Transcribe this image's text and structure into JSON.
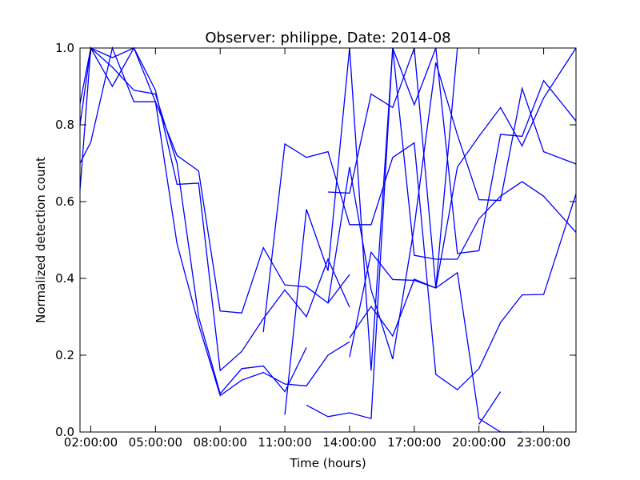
{
  "chart_data": {
    "type": "line",
    "title": "Observer: philippe, Date: 2014-08",
    "xlabel": "Time (hours)",
    "ylabel": "Normalized detection count",
    "xlim": [
      1.5,
      24.5
    ],
    "ylim": [
      0.0,
      1.0
    ],
    "x_ticks": [
      2,
      5,
      8,
      11,
      14,
      17,
      20,
      23
    ],
    "x_tick_labels": [
      "02:00:00",
      "05:00:00",
      "08:00:00",
      "11:00:00",
      "14:00:00",
      "17:00:00",
      "20:00:00",
      "23:00:00"
    ],
    "y_ticks": [
      0.0,
      0.2,
      0.4,
      0.6,
      0.8,
      1.0
    ],
    "y_tick_labels": [
      "0.0",
      "0.2",
      "0.4",
      "0.6",
      "0.8",
      "1.0"
    ],
    "grid": false,
    "line_color": "#0000ff",
    "series": [
      {
        "x": [
          1.5,
          2,
          3,
          4,
          5,
          6,
          7,
          8,
          9,
          10,
          11,
          12,
          13,
          14
        ],
        "y": [
          0.855,
          1.0,
          0.975,
          1.0,
          0.89,
          0.645,
          0.648,
          0.16,
          0.21,
          0.295,
          0.37,
          0.3,
          0.45,
          0.325
        ]
      },
      {
        "x": [
          1.5,
          2,
          3,
          4,
          5,
          6,
          7,
          8,
          9,
          10,
          11,
          12,
          13,
          14
        ],
        "y": [
          0.63,
          1.0,
          0.9,
          1.0,
          0.86,
          0.49,
          0.28,
          0.095,
          0.135,
          0.155,
          0.125,
          0.12,
          0.2,
          0.235
        ]
      },
      {
        "x": [
          1.5,
          2,
          3,
          4,
          5,
          6,
          7,
          8,
          9,
          10,
          11,
          12,
          13,
          14
        ],
        "y": [
          0.7,
          0.755,
          1.0,
          0.86,
          0.86,
          0.72,
          0.68,
          0.315,
          0.31,
          0.48,
          0.383,
          0.378,
          0.336,
          0.41
        ]
      },
      {
        "x": [
          1.5,
          2,
          3,
          4,
          5,
          6,
          7,
          8,
          9,
          10,
          11,
          12
        ],
        "y": [
          0.8,
          1.0,
          0.95,
          0.89,
          0.88,
          0.7,
          0.3,
          0.1,
          0.165,
          0.172,
          0.105,
          0.22
        ]
      },
      {
        "x": [
          10,
          11,
          12,
          13,
          14,
          15,
          16,
          17,
          18,
          19,
          20,
          21,
          22,
          23,
          24.5
        ],
        "y": [
          0.26,
          0.75,
          0.715,
          0.73,
          0.54,
          0.54,
          0.715,
          0.753,
          0.15,
          0.11,
          0.165,
          0.285,
          0.357,
          0.358,
          0.62
        ]
      },
      {
        "x": [
          11,
          12,
          13,
          14,
          15,
          16,
          17,
          18,
          19,
          20,
          21,
          22,
          23,
          24.5
        ],
        "y": [
          0.045,
          0.58,
          0.42,
          1.0,
          0.16,
          1.0,
          0.852,
          1.0,
          0.465,
          0.472,
          0.775,
          0.77,
          0.915,
          0.81
        ]
      },
      {
        "x": [
          12,
          13,
          14,
          15,
          16,
          17,
          18,
          19,
          20,
          21,
          22,
          23,
          24.5
        ],
        "y": [
          0.07,
          0.04,
          0.05,
          0.035,
          1.0,
          0.46,
          0.45,
          0.45,
          0.555,
          0.614,
          0.652,
          0.614,
          0.52
        ]
      },
      {
        "x": [
          13,
          14,
          15,
          16,
          17,
          18,
          19
        ],
        "y": [
          0.625,
          0.622,
          0.88,
          0.845,
          1.0,
          0.375,
          1.0
        ]
      },
      {
        "x": [
          13,
          14,
          15,
          16,
          17,
          18,
          19,
          20,
          21,
          22,
          23,
          24.5
        ],
        "y": [
          0.335,
          0.69,
          0.37,
          0.19,
          0.535,
          0.962,
          0.774,
          0.605,
          0.603,
          0.895,
          0.73,
          0.698
        ]
      },
      {
        "x": [
          14,
          15,
          16,
          17,
          18,
          19,
          20,
          21,
          22,
          23,
          24.5
        ],
        "y": [
          0.195,
          0.468,
          0.397,
          0.395,
          0.375,
          0.415,
          0.035,
          0.0,
          0.0,
          null,
          null
        ]
      },
      {
        "x": [
          14,
          15,
          16,
          17,
          18,
          19,
          20,
          21,
          22,
          23,
          24.5
        ],
        "y": [
          0.245,
          0.327,
          0.25,
          0.398,
          0.375,
          0.69,
          0.77,
          0.845,
          0.745,
          0.87,
          1.0
        ]
      },
      {
        "x": [
          20,
          21
        ],
        "y": [
          0.02,
          0.105
        ]
      }
    ]
  }
}
